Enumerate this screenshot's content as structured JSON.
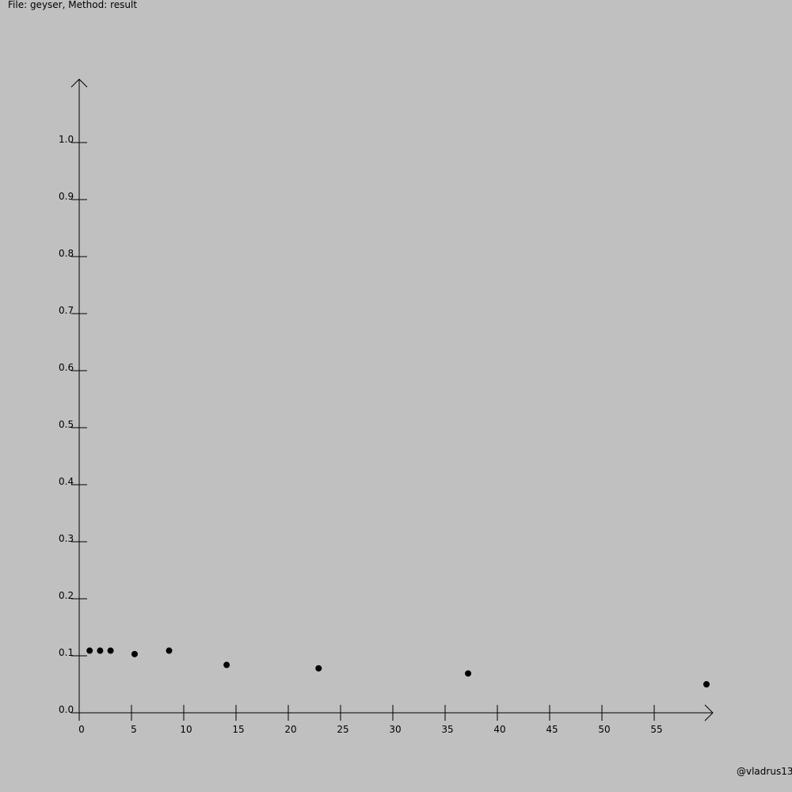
{
  "header": {
    "title": "File: geyser, Method: result"
  },
  "footer": {
    "watermark": "@vladrus13"
  },
  "chart_data": {
    "type": "scatter",
    "title": "File: geyser, Method: result",
    "xlabel": "",
    "ylabel": "",
    "xlim": [
      0,
      60
    ],
    "ylim": [
      0,
      1.1
    ],
    "x_ticks": [
      0,
      5,
      10,
      15,
      20,
      25,
      30,
      35,
      40,
      45,
      50,
      55
    ],
    "x_tick_labels": [
      "0",
      "5",
      "10",
      "15",
      "20",
      "25",
      "30",
      "35",
      "40",
      "45",
      "50",
      "55"
    ],
    "y_ticks": [
      0,
      0.1,
      0.2,
      0.3,
      0.4,
      0.5,
      0.6,
      0.7,
      0.8,
      0.9,
      1.0
    ],
    "y_tick_labels": [
      "0.0",
      "0.1",
      "0.2",
      "0.3",
      "0.4",
      "0.5",
      "0.6",
      "0.7",
      "0.8",
      "0.9",
      "1.0"
    ],
    "grid": false,
    "legend": "none",
    "colors": {
      "background": "#c0c0c0",
      "axis": "#000000",
      "point": "#000000"
    },
    "series": [
      {
        "points": [
          {
            "x": 1,
            "y": 0.109
          },
          {
            "x": 2,
            "y": 0.109
          },
          {
            "x": 3,
            "y": 0.109
          },
          {
            "x": 5.3,
            "y": 0.103
          },
          {
            "x": 8.6,
            "y": 0.109
          },
          {
            "x": 14.1,
            "y": 0.084
          },
          {
            "x": 22.9,
            "y": 0.078
          },
          {
            "x": 37.2,
            "y": 0.069
          },
          {
            "x": 60,
            "y": 0.05
          }
        ]
      }
    ]
  }
}
